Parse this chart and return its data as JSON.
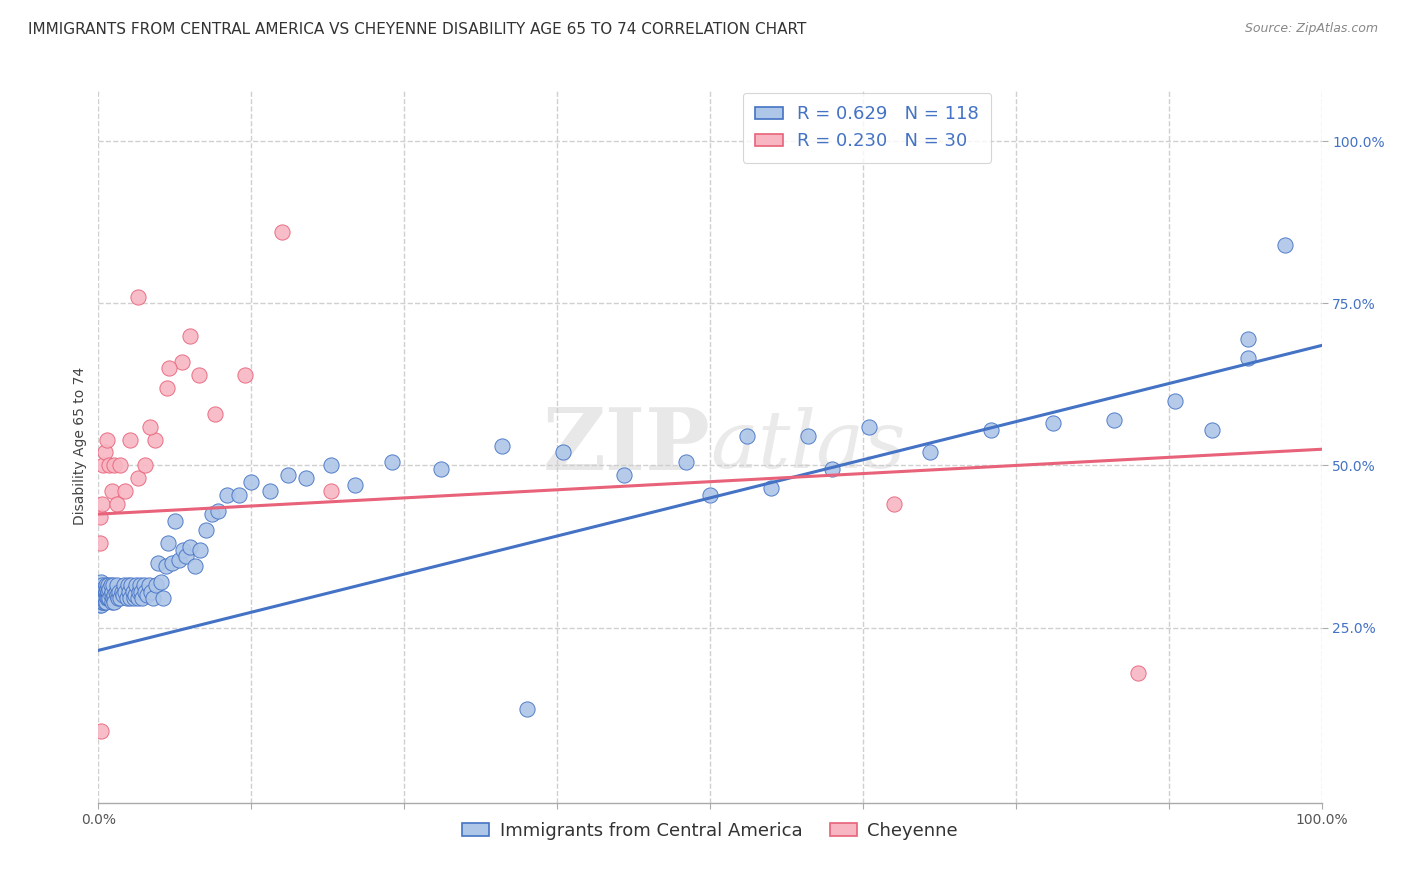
{
  "title": "IMMIGRANTS FROM CENTRAL AMERICA VS CHEYENNE DISABILITY AGE 65 TO 74 CORRELATION CHART",
  "source": "Source: ZipAtlas.com",
  "ylabel": "Disability Age 65 to 74",
  "y_tick_labels": [
    "25.0%",
    "50.0%",
    "75.0%",
    "100.0%"
  ],
  "y_tick_values": [
    0.25,
    0.5,
    0.75,
    1.0
  ],
  "x_tick_values": [
    0.0,
    0.125,
    0.25,
    0.375,
    0.5,
    0.625,
    0.75,
    0.875,
    1.0
  ],
  "blue_R": 0.629,
  "blue_N": 118,
  "pink_R": 0.23,
  "pink_N": 30,
  "blue_color": "#aec6e8",
  "pink_color": "#f7b6c2",
  "blue_line_color": "#4472c4",
  "pink_line_color": "#e8627a",
  "legend_label_blue": "Immigrants from Central America",
  "legend_label_pink": "Cheyenne",
  "watermark": "ZIPAtlas",
  "blue_scatter_x": [
    0.001,
    0.001,
    0.001,
    0.001,
    0.001,
    0.002,
    0.002,
    0.002,
    0.002,
    0.002,
    0.003,
    0.003,
    0.003,
    0.003,
    0.004,
    0.004,
    0.004,
    0.004,
    0.005,
    0.005,
    0.005,
    0.005,
    0.006,
    0.006,
    0.006,
    0.007,
    0.007,
    0.007,
    0.008,
    0.008,
    0.008,
    0.009,
    0.009,
    0.01,
    0.01,
    0.011,
    0.011,
    0.012,
    0.012,
    0.013,
    0.013,
    0.014,
    0.015,
    0.015,
    0.016,
    0.017,
    0.018,
    0.019,
    0.02,
    0.021,
    0.022,
    0.023,
    0.024,
    0.025,
    0.026,
    0.027,
    0.028,
    0.029,
    0.03,
    0.031,
    0.032,
    0.033,
    0.034,
    0.035,
    0.036,
    0.037,
    0.038,
    0.04,
    0.041,
    0.043,
    0.045,
    0.047,
    0.049,
    0.051,
    0.053,
    0.055,
    0.057,
    0.06,
    0.063,
    0.066,
    0.069,
    0.072,
    0.075,
    0.079,
    0.083,
    0.088,
    0.093,
    0.098,
    0.105,
    0.115,
    0.125,
    0.14,
    0.155,
    0.17,
    0.19,
    0.21,
    0.24,
    0.28,
    0.33,
    0.38,
    0.43,
    0.48,
    0.53,
    0.58,
    0.63,
    0.68,
    0.73,
    0.78,
    0.83,
    0.88,
    0.91,
    0.94,
    0.94,
    0.97,
    0.5,
    0.55,
    0.6,
    0.35
  ],
  "blue_scatter_y": [
    0.295,
    0.31,
    0.3,
    0.285,
    0.305,
    0.3,
    0.295,
    0.31,
    0.285,
    0.32,
    0.295,
    0.305,
    0.29,
    0.315,
    0.3,
    0.29,
    0.31,
    0.295,
    0.305,
    0.29,
    0.31,
    0.295,
    0.305,
    0.29,
    0.315,
    0.3,
    0.295,
    0.31,
    0.295,
    0.305,
    0.315,
    0.295,
    0.31,
    0.3,
    0.315,
    0.29,
    0.305,
    0.295,
    0.315,
    0.3,
    0.29,
    0.305,
    0.3,
    0.315,
    0.295,
    0.305,
    0.295,
    0.305,
    0.3,
    0.315,
    0.305,
    0.295,
    0.315,
    0.305,
    0.295,
    0.315,
    0.305,
    0.295,
    0.3,
    0.315,
    0.295,
    0.305,
    0.315,
    0.305,
    0.295,
    0.315,
    0.305,
    0.3,
    0.315,
    0.305,
    0.295,
    0.315,
    0.35,
    0.32,
    0.295,
    0.345,
    0.38,
    0.35,
    0.415,
    0.355,
    0.37,
    0.36,
    0.375,
    0.345,
    0.37,
    0.4,
    0.425,
    0.43,
    0.455,
    0.455,
    0.475,
    0.46,
    0.485,
    0.48,
    0.5,
    0.47,
    0.505,
    0.495,
    0.53,
    0.52,
    0.485,
    0.505,
    0.545,
    0.545,
    0.56,
    0.52,
    0.555,
    0.565,
    0.57,
    0.6,
    0.555,
    0.665,
    0.695,
    0.84,
    0.455,
    0.465,
    0.495,
    0.125
  ],
  "pink_scatter_x": [
    0.001,
    0.001,
    0.002,
    0.003,
    0.004,
    0.005,
    0.007,
    0.009,
    0.011,
    0.013,
    0.015,
    0.018,
    0.022,
    0.026,
    0.032,
    0.038,
    0.046,
    0.056,
    0.068,
    0.082,
    0.032,
    0.042,
    0.058,
    0.075,
    0.095,
    0.12,
    0.15,
    0.19,
    0.65,
    0.85
  ],
  "pink_scatter_y": [
    0.42,
    0.38,
    0.09,
    0.44,
    0.5,
    0.52,
    0.54,
    0.5,
    0.46,
    0.5,
    0.44,
    0.5,
    0.46,
    0.54,
    0.48,
    0.5,
    0.54,
    0.62,
    0.66,
    0.64,
    0.76,
    0.56,
    0.65,
    0.7,
    0.58,
    0.64,
    0.86,
    0.46,
    0.44,
    0.18
  ],
  "blue_line_x": [
    0.0,
    1.0
  ],
  "blue_line_y_start": 0.215,
  "blue_line_y_end": 0.685,
  "pink_line_x": [
    0.0,
    1.0
  ],
  "pink_line_y_start": 0.425,
  "pink_line_y_end": 0.525,
  "xlim": [
    0.0,
    1.0
  ],
  "ylim": [
    -0.02,
    1.08
  ],
  "grid_color": "#d0d0d0",
  "background_color": "#ffffff",
  "title_fontsize": 11,
  "axis_label_fontsize": 10,
  "tick_fontsize": 10,
  "legend_fontsize": 13
}
